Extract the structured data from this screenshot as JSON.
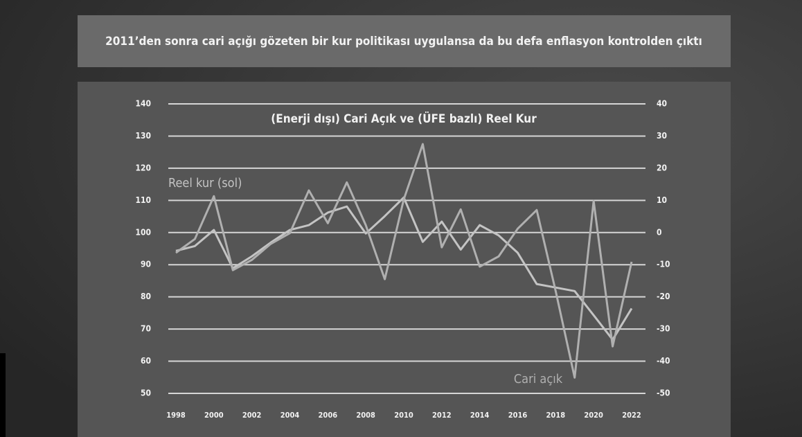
{
  "slide_title": "2011’den sonra cari açığı gözeten bir kur politikası uygulansa da bu defa enflasyon kontrolden çıktı",
  "chart_data": {
    "type": "line",
    "title": "(Enerji dışı) Cari Açık ve (ÜFE bazlı) Reel Kur",
    "x": [
      1998,
      1999,
      2000,
      2001,
      2002,
      2003,
      2004,
      2005,
      2006,
      2007,
      2008,
      2009,
      2010,
      2011,
      2012,
      2013,
      2014,
      2015,
      2016,
      2017,
      2018,
      2019,
      2020,
      2021,
      2022
    ],
    "xlim": [
      1998,
      2022
    ],
    "xticks": [
      1998,
      2000,
      2002,
      2004,
      2006,
      2008,
      2010,
      2012,
      2014,
      2016,
      2018,
      2020,
      2022
    ],
    "ylim": [
      50,
      140
    ],
    "yticks": [
      50,
      60,
      70,
      80,
      90,
      100,
      110,
      120,
      130,
      140
    ],
    "y2lim": [
      -50,
      40
    ],
    "y2ticks": [
      -50,
      -40,
      -30,
      -20,
      -10,
      0,
      10,
      20,
      30,
      40
    ],
    "grid": true,
    "series": [
      {
        "name": "Reel kur (sol)",
        "color": "#c4c4c4",
        "values": [
          94.3,
          95.8,
          100.8,
          88.9,
          92.6,
          96.9,
          100.8,
          102.3,
          106.2,
          108.1,
          99.7,
          105.1,
          110.9,
          97.1,
          103.4,
          94.7,
          102.3,
          99.1,
          93.7,
          84.0,
          82.9,
          81.8,
          74.3,
          66.7,
          76.4
        ]
      },
      {
        "name": "Cari açık",
        "color": "#b0b0b0",
        "axis": "y2",
        "values": [
          -6.3,
          -2.0,
          11.3,
          -11.7,
          -8.5,
          -3.5,
          -0.2,
          13.1,
          2.9,
          15.6,
          2.3,
          -14.5,
          10.3,
          27.5,
          -4.6,
          7.2,
          -10.6,
          -7.4,
          1.2,
          7.0,
          -18.2,
          -45.1,
          9.8,
          -35.4,
          -9.1
        ]
      }
    ]
  }
}
